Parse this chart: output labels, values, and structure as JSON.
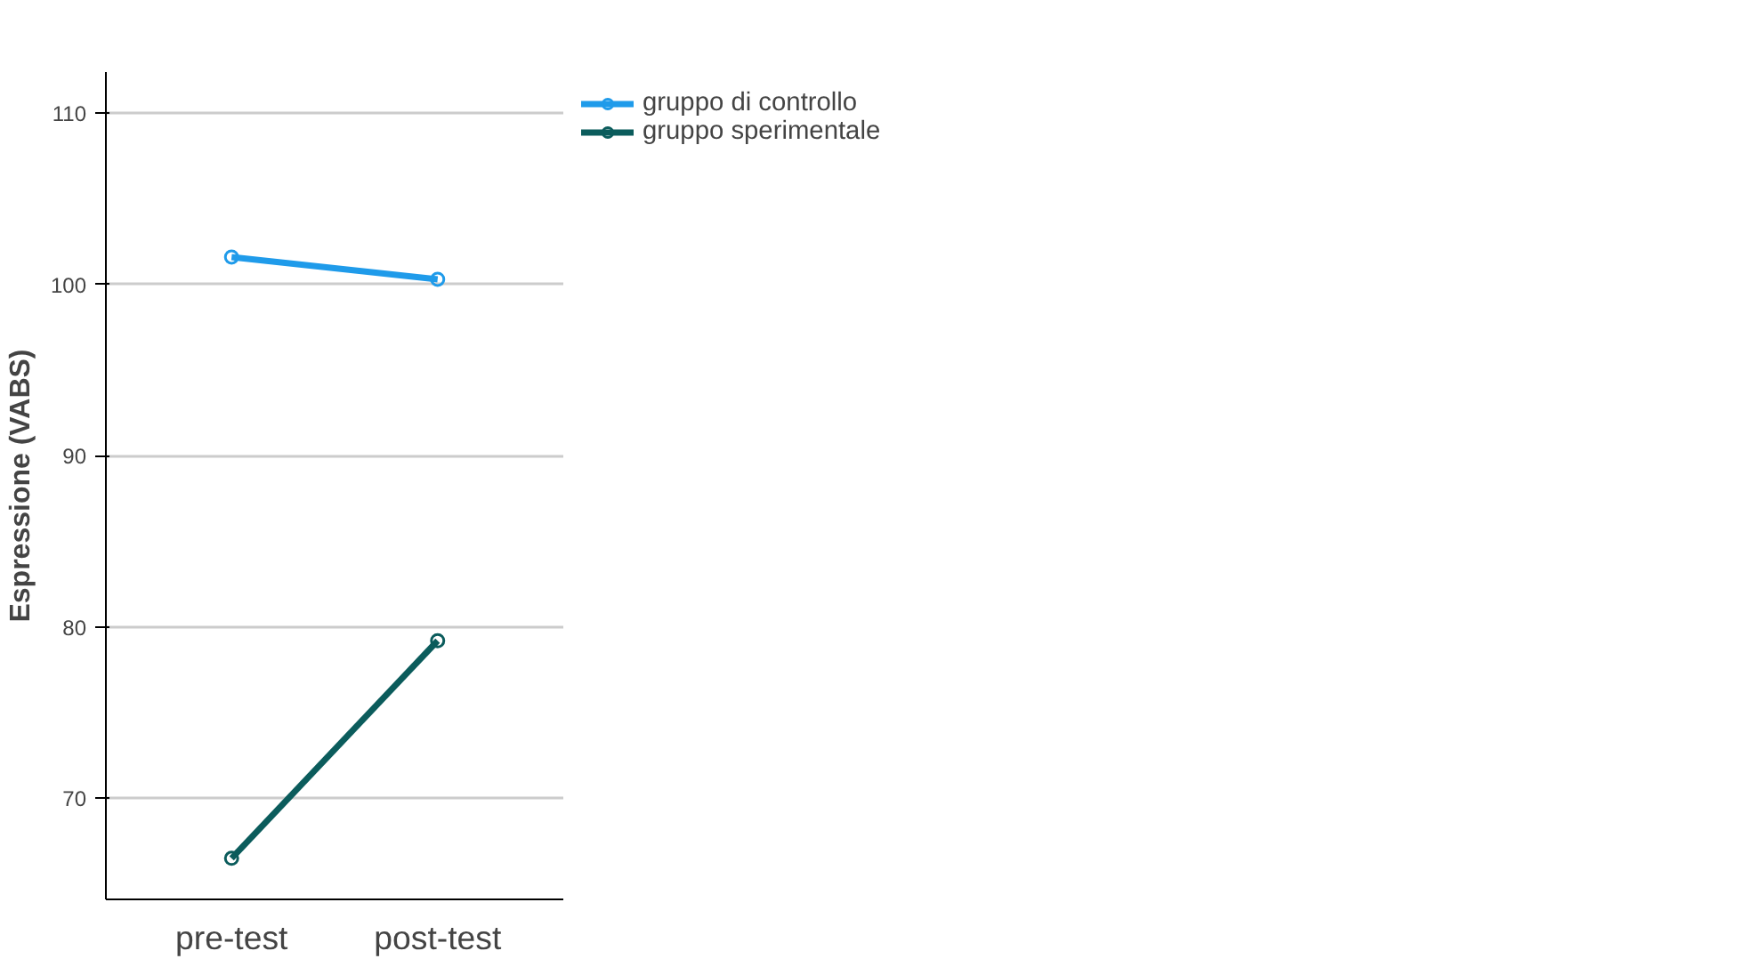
{
  "chart_data": {
    "type": "line",
    "ylabel": "Espressione (VABS)",
    "categories": [
      "pre-test",
      "post-test"
    ],
    "series": [
      {
        "name": "gruppo di controllo",
        "color": "#1f9bea",
        "values": [
          101.6,
          100.3
        ]
      },
      {
        "name": "gruppo sperimentale",
        "color": "#0b5c5c",
        "values": [
          66.5,
          79.2
        ]
      }
    ],
    "ylim": [
      64.1,
      112.4
    ],
    "yticks": [
      70,
      80,
      90,
      100,
      110
    ],
    "grid": "y",
    "legend": "top right",
    "marker": "circle",
    "line_style": "solid"
  }
}
